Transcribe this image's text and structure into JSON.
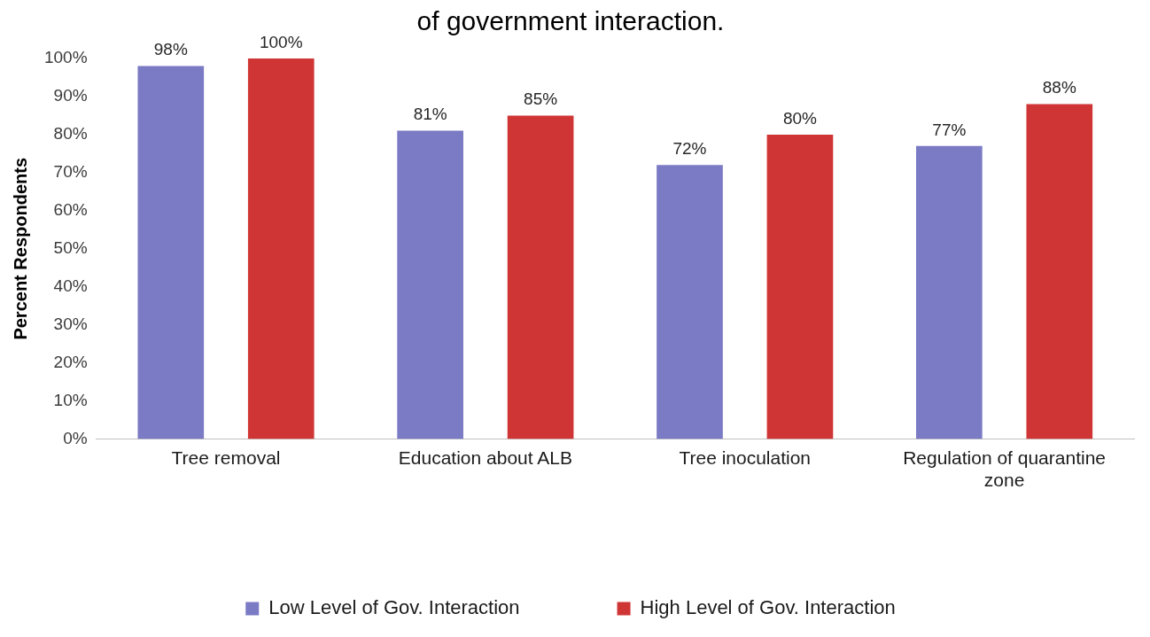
{
  "chart_data": {
    "type": "bar",
    "title": "of government interaction.",
    "ylabel": "Percent Respondents",
    "categories": [
      "Tree removal",
      "Education about ALB",
      "Tree inoculation",
      "Regulation of quarantine zone"
    ],
    "series": [
      {
        "name": "Low Level of Gov. Interaction",
        "color": "#7a7bc4",
        "values": [
          98,
          81,
          72,
          77
        ],
        "value_labels": [
          "98%",
          "81%",
          "72%",
          "77%"
        ]
      },
      {
        "name": "High Level of Gov. Interaction",
        "color": "#d03535",
        "values": [
          100,
          85,
          80,
          88
        ],
        "value_labels": [
          "100%",
          "85%",
          "80%",
          "88%"
        ]
      }
    ],
    "ylim": [
      0,
      100
    ],
    "yticks": [
      {
        "value": 0,
        "label": "0%"
      },
      {
        "value": 10,
        "label": "10%"
      },
      {
        "value": 20,
        "label": "20%"
      },
      {
        "value": 30,
        "label": "30%"
      },
      {
        "value": 40,
        "label": "40%"
      },
      {
        "value": 50,
        "label": "50%"
      },
      {
        "value": 60,
        "label": "60%"
      },
      {
        "value": 70,
        "label": "70%"
      },
      {
        "value": 80,
        "label": "80%"
      },
      {
        "value": 90,
        "label": "90%"
      },
      {
        "value": 100,
        "label": "100%"
      }
    ],
    "grid": false,
    "legend": "bottom"
  }
}
